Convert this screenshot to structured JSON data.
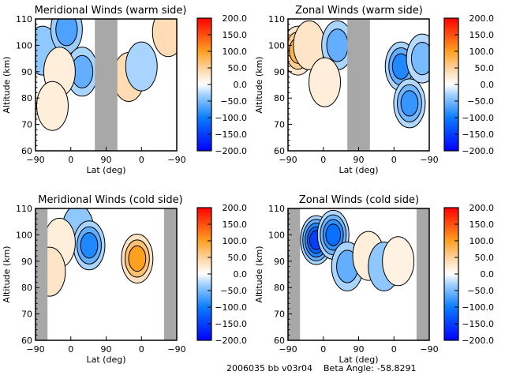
{
  "footer": {
    "id_text": "2006035 bb v03r04",
    "beta_label": "Beta Angle:",
    "beta_value": "-58.8291"
  },
  "colorbar": {
    "ticks": [
      "200.0",
      "150.0",
      "100.0",
      "50.0",
      "0.0",
      "−50.0",
      "−100.0",
      "−150.0",
      "−200.0"
    ],
    "range": [
      -200,
      200
    ],
    "colors": [
      "#0000ff",
      "#0a7cff",
      "#9fd0ff",
      "#ffffff",
      "#ffdcb4",
      "#ffa020",
      "#ff0000"
    ]
  },
  "chart_data": [
    {
      "type": "heatmap",
      "title": "Meridional Winds (warm side)",
      "xlabel": "Lat (deg)",
      "ylabel": "Altitude (km)",
      "xticks": [
        "−90",
        "0",
        "90",
        "0",
        "−90"
      ],
      "yticks": [
        "60",
        "70",
        "80",
        "90",
        "100",
        "110"
      ],
      "ylim": [
        60,
        110
      ],
      "colorbar_range": [
        -200,
        200
      ],
      "no_data_bands_lat_index": [
        [
          0.42,
          0.58
        ]
      ],
      "features": [
        {
          "lat_index": 0.05,
          "alt": 98,
          "value": -40
        },
        {
          "lat_index": 0.22,
          "alt": 106,
          "value": -70
        },
        {
          "lat_index": 0.33,
          "alt": 90,
          "value": -60
        },
        {
          "lat_index": 0.17,
          "alt": 90,
          "value": 20
        },
        {
          "lat_index": 0.12,
          "alt": 77,
          "value": 20
        },
        {
          "lat_index": 0.66,
          "alt": 88,
          "value": 40
        },
        {
          "lat_index": 0.75,
          "alt": 92,
          "value": -30
        },
        {
          "lat_index": 0.94,
          "alt": 105,
          "value": 40
        }
      ]
    },
    {
      "type": "heatmap",
      "title": "Zonal Winds (warm side)",
      "xlabel": "Lat (deg)",
      "ylabel": "Altitude (km)",
      "xticks": [
        "−90",
        "0",
        "90",
        "0",
        "−90"
      ],
      "yticks": [
        "60",
        "70",
        "80",
        "90",
        "100",
        "110"
      ],
      "ylim": [
        60,
        110
      ],
      "colorbar_range": [
        -200,
        200
      ],
      "no_data_bands_lat_index": [
        [
          0.42,
          0.58
        ]
      ],
      "features": [
        {
          "lat_index": 0.07,
          "alt": 98,
          "value": 80
        },
        {
          "lat_index": 0.15,
          "alt": 100,
          "value": 30
        },
        {
          "lat_index": 0.35,
          "alt": 100,
          "value": -60
        },
        {
          "lat_index": 0.26,
          "alt": 86,
          "value": 20
        },
        {
          "lat_index": 0.8,
          "alt": 92,
          "value": -90
        },
        {
          "lat_index": 0.86,
          "alt": 78,
          "value": -80
        },
        {
          "lat_index": 0.95,
          "alt": 95,
          "value": -50
        }
      ]
    },
    {
      "type": "heatmap",
      "title": "Meridional Winds (cold side)",
      "xlabel": "Lat (deg)",
      "ylabel": "Altitude (km)",
      "xticks": [
        "−90",
        "0",
        "90",
        "0",
        "−90"
      ],
      "yticks": [
        "60",
        "70",
        "80",
        "90",
        "100",
        "110"
      ],
      "ylim": [
        60,
        110
      ],
      "colorbar_range": [
        -200,
        200
      ],
      "no_data_bands_lat_index": [
        [
          0.0,
          0.085
        ],
        [
          0.91,
          1.0
        ]
      ],
      "features": [
        {
          "lat_index": 0.3,
          "alt": 102,
          "value": -40
        },
        {
          "lat_index": 0.38,
          "alt": 96,
          "value": -90
        },
        {
          "lat_index": 0.17,
          "alt": 97,
          "value": 20
        },
        {
          "lat_index": 0.1,
          "alt": 86,
          "value": 30
        },
        {
          "lat_index": 0.72,
          "alt": 91,
          "value": 100
        }
      ]
    },
    {
      "type": "heatmap",
      "title": "Zonal Winds (cold side)",
      "xlabel": "Lat (deg)",
      "ylabel": "Altitude (km)",
      "xticks": [
        "−90",
        "0",
        "90",
        "0",
        "−90"
      ],
      "yticks": [
        "60",
        "70",
        "80",
        "90",
        "100",
        "110"
      ],
      "ylim": [
        60,
        110
      ],
      "colorbar_range": [
        -200,
        200
      ],
      "no_data_bands_lat_index": [
        [
          0.0,
          0.085
        ],
        [
          0.91,
          1.0
        ]
      ],
      "features": [
        {
          "lat_index": 0.2,
          "alt": 98,
          "value": -150
        },
        {
          "lat_index": 0.32,
          "alt": 100,
          "value": -110
        },
        {
          "lat_index": 0.42,
          "alt": 88,
          "value": -60
        },
        {
          "lat_index": 0.57,
          "alt": 92,
          "value": 20
        },
        {
          "lat_index": 0.68,
          "alt": 88,
          "value": -40
        },
        {
          "lat_index": 0.78,
          "alt": 90,
          "value": 15
        }
      ]
    }
  ]
}
